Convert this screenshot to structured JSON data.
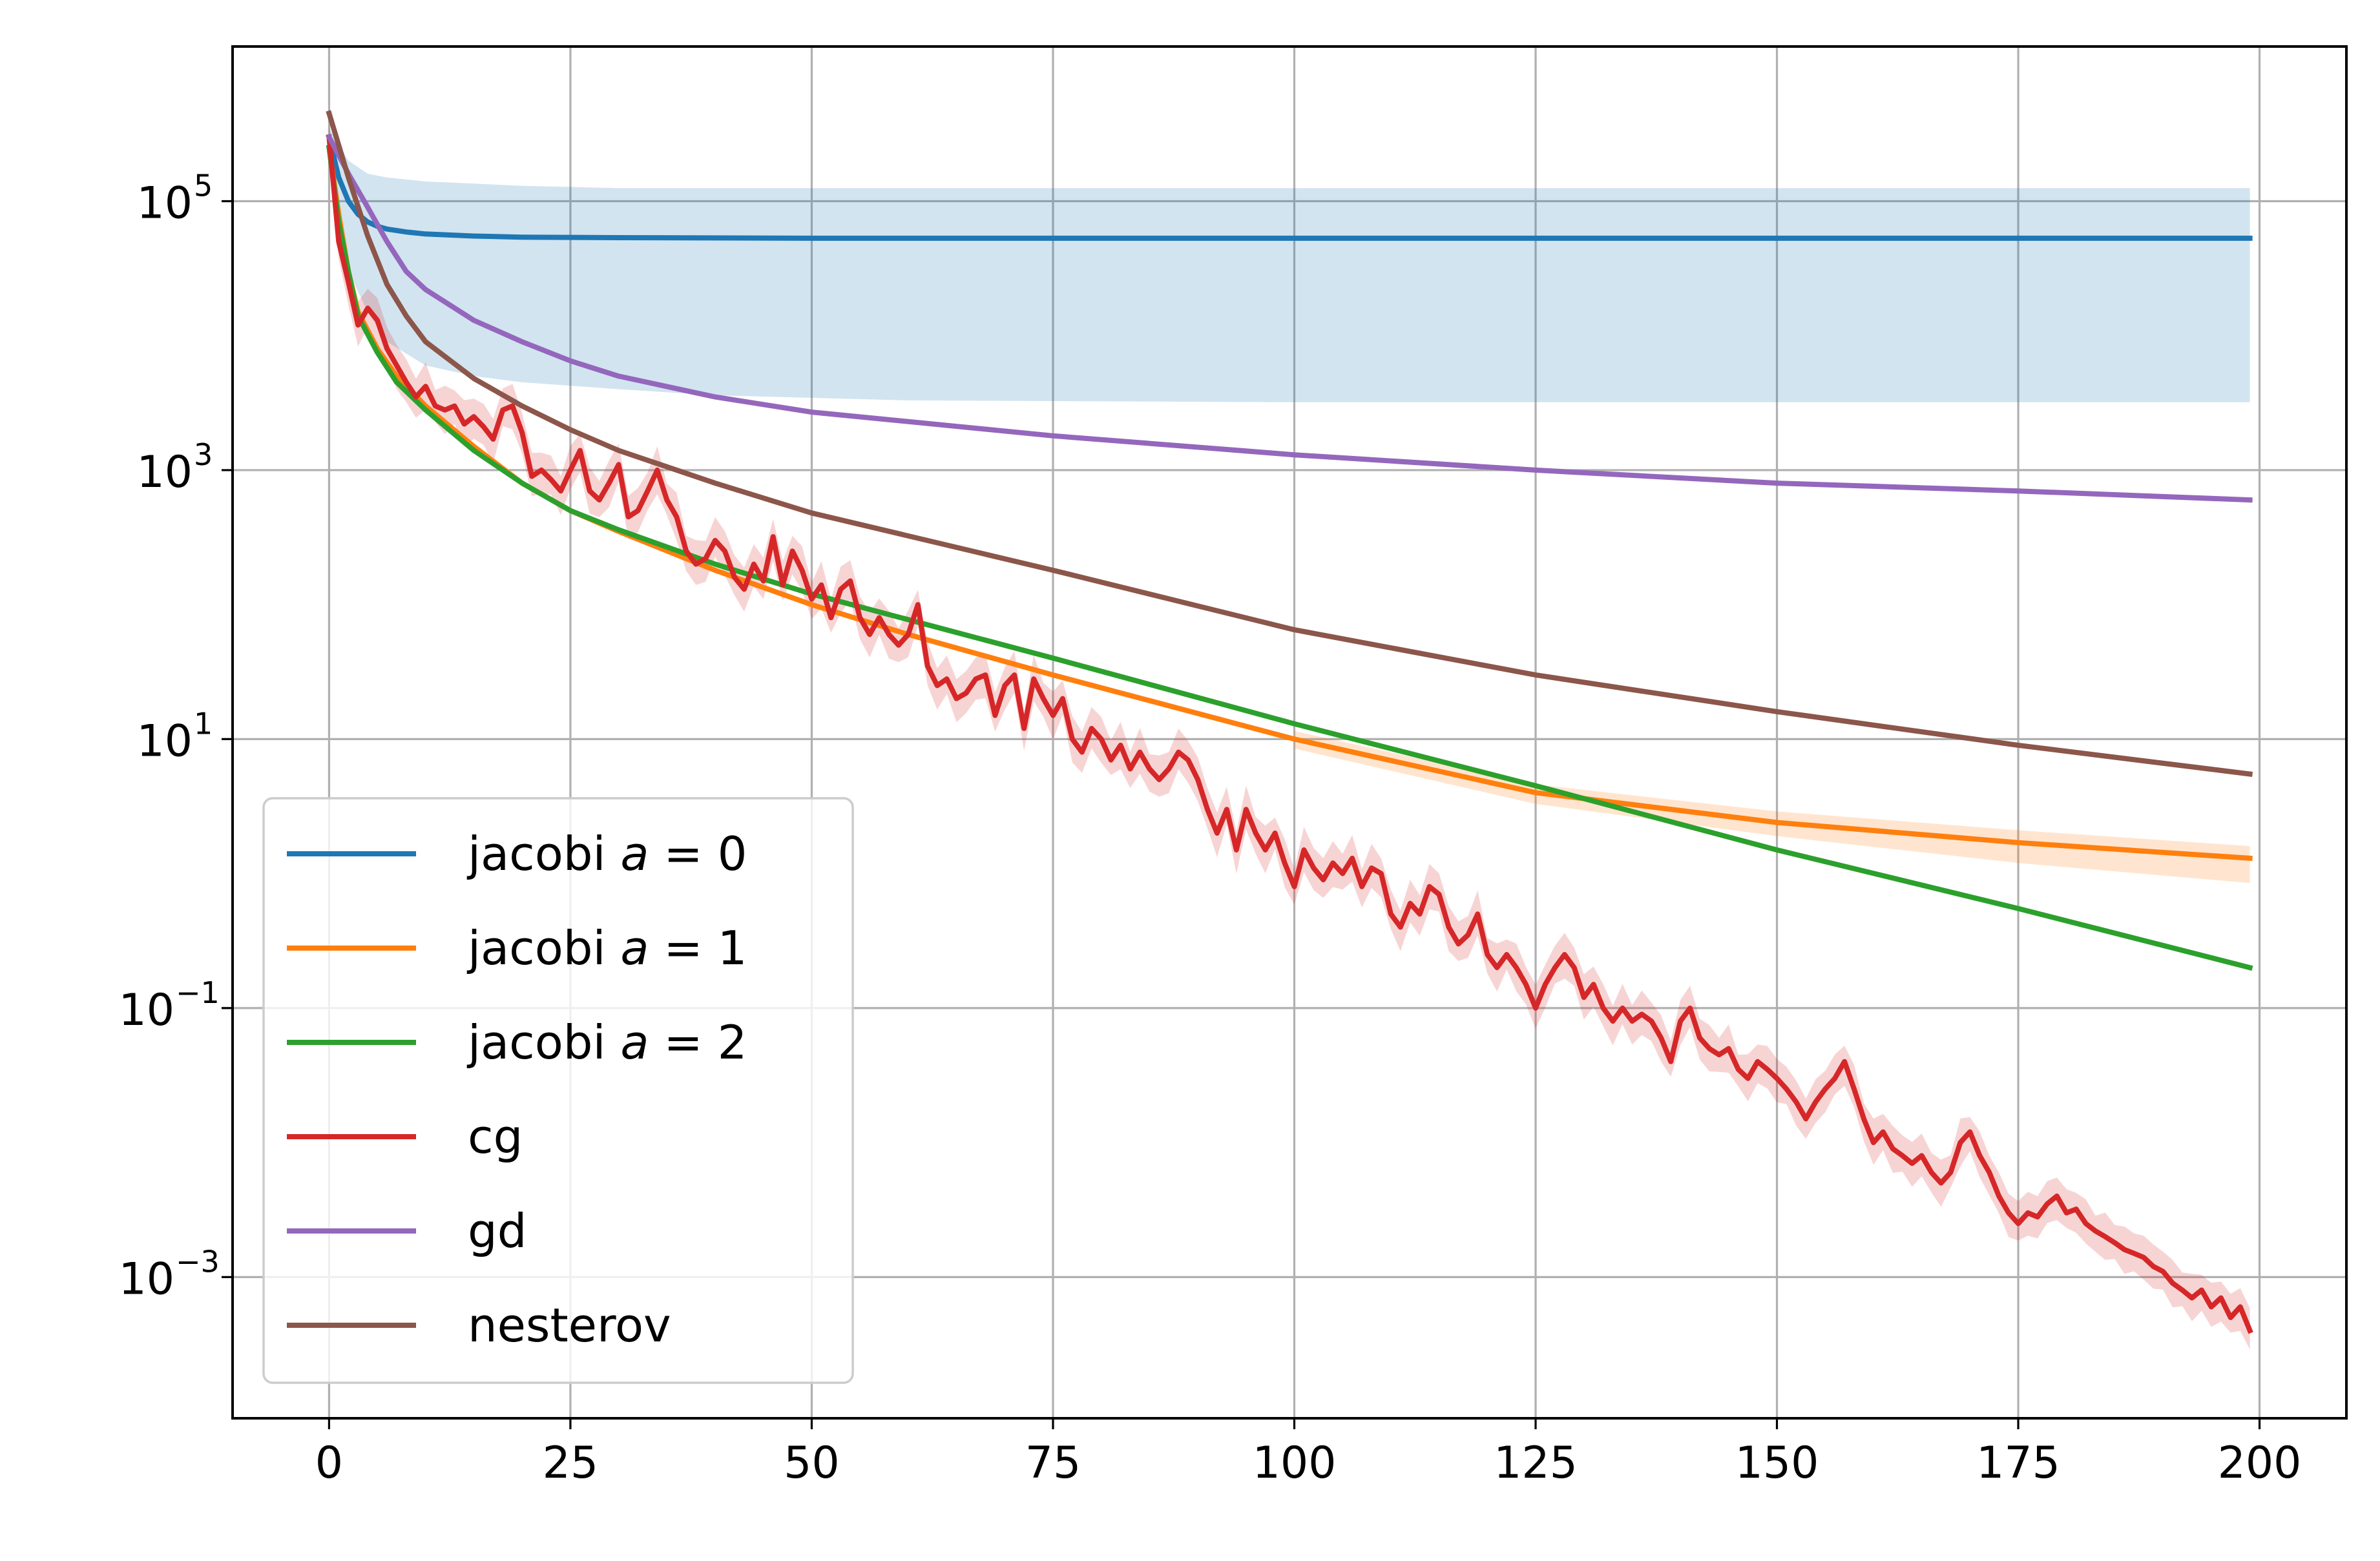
{
  "chart_data": {
    "type": "line",
    "title": "",
    "xlabel": "",
    "ylabel": "",
    "xlim": [
      -10,
      209
    ],
    "ylim_log10": [
      -4.05,
      6.15
    ],
    "yscale": "log",
    "grid": true,
    "legend_position": "lower-left",
    "x_ticks": [
      "0",
      "25",
      "50",
      "75",
      "100",
      "125",
      "150",
      "175",
      "200"
    ],
    "x_tick_values": [
      0,
      25,
      50,
      75,
      100,
      125,
      150,
      175,
      200
    ],
    "y_ticks": [
      {
        "base": "10",
        "exp": "5",
        "log10": 5
      },
      {
        "base": "10",
        "exp": "3",
        "log10": 3
      },
      {
        "base": "10",
        "exp": "1",
        "log10": 1
      },
      {
        "base": "10",
        "exp": "−1",
        "log10": -1
      },
      {
        "base": "10",
        "exp": "−3",
        "log10": -3
      }
    ],
    "series": [
      {
        "name": "jacobi a = 0",
        "label_text": "jacobi ",
        "label_math": "a",
        "label_suffix": " = 0",
        "color": "#1f77b4",
        "x": [
          0,
          1,
          2,
          3,
          4,
          5,
          6,
          8,
          10,
          15,
          20,
          30,
          50,
          100,
          150,
          199
        ],
        "y": [
          300000,
          150000,
          100000,
          80000,
          70000,
          65000,
          62000,
          59000,
          57000,
          55000,
          54000,
          53500,
          53000,
          53000,
          53000,
          53000
        ],
        "band": {
          "x": [
            0,
            2,
            4,
            6,
            10,
            15,
            20,
            30,
            40,
            60,
            100,
            150,
            199
          ],
          "lower": [
            250000,
            30000,
            15000,
            9000,
            6000,
            5000,
            4500,
            4000,
            3600,
            3300,
            3200,
            3200,
            3200
          ],
          "upper": [
            350000,
            200000,
            160000,
            150000,
            140000,
            135000,
            130000,
            125000,
            125000,
            125000,
            125000,
            125000,
            125000
          ]
        }
      },
      {
        "name": "jacobi a = 1",
        "label_text": "jacobi ",
        "label_math": "a",
        "label_suffix": " = 1",
        "color": "#ff7f0e",
        "x": [
          0,
          1,
          2,
          3,
          5,
          7,
          10,
          15,
          20,
          25,
          30,
          40,
          50,
          60,
          75,
          100,
          125,
          150,
          175,
          199
        ],
        "y": [
          250000,
          80000,
          30000,
          15000,
          8000,
          5000,
          3000,
          1500,
          800,
          500,
          350,
          180,
          100,
          60,
          30,
          10,
          4,
          2.4,
          1.7,
          1.3
        ],
        "band": {
          "x": [
            100,
            125,
            150,
            175,
            199
          ],
          "lower": [
            8.5,
            3.3,
            1.9,
            1.2,
            0.85
          ],
          "upper": [
            11.5,
            4.6,
            2.9,
            2.1,
            1.6
          ]
        }
      },
      {
        "name": "jacobi a = 2",
        "label_text": "jacobi ",
        "label_math": "a",
        "label_suffix": " = 2",
        "color": "#2ca02c",
        "x": [
          0,
          1,
          2,
          3,
          5,
          7,
          10,
          15,
          20,
          25,
          30,
          40,
          50,
          75,
          100,
          125,
          150,
          175,
          199
        ],
        "y": [
          250000,
          70000,
          30000,
          14000,
          7500,
          4500,
          2800,
          1400,
          800,
          500,
          360,
          200,
          120,
          40,
          13,
          4.5,
          1.5,
          0.55,
          0.2
        ]
      },
      {
        "name": "cg",
        "label_text": "cg",
        "label_math": "",
        "label_suffix": "",
        "color": "#d62728",
        "x": [
          0,
          1,
          2,
          3,
          4,
          5,
          6,
          7,
          8,
          9,
          10,
          11,
          12,
          13,
          14,
          15,
          16,
          17,
          18,
          19,
          20,
          21,
          22,
          23,
          24,
          25,
          26,
          27,
          28,
          29,
          30,
          31,
          32,
          33,
          34,
          35,
          36,
          37,
          38,
          39,
          40,
          41,
          42,
          43,
          44,
          45,
          46,
          47,
          48,
          49,
          50,
          51,
          52,
          53,
          54,
          55,
          56,
          57,
          58,
          59,
          60,
          61,
          62,
          63,
          64,
          65,
          66,
          67,
          68,
          69,
          70,
          71,
          72,
          73,
          74,
          75,
          76,
          77,
          78,
          79,
          80,
          81,
          82,
          83,
          84,
          85,
          86,
          87,
          88,
          89,
          90,
          91,
          92,
          93,
          94,
          95,
          96,
          97,
          98,
          99,
          100,
          101,
          102,
          103,
          104,
          105,
          106,
          107,
          108,
          109,
          110,
          111,
          112,
          113,
          114,
          115,
          116,
          117,
          118,
          119,
          120,
          121,
          122,
          123,
          124,
          125,
          126,
          127,
          128,
          129,
          130,
          131,
          132,
          133,
          134,
          135,
          136,
          137,
          138,
          139,
          140,
          141,
          142,
          143,
          144,
          145,
          146,
          147,
          148,
          149,
          150,
          151,
          152,
          153,
          154,
          155,
          156,
          157,
          158,
          159,
          160,
          161,
          162,
          163,
          164,
          165,
          166,
          167,
          168,
          169,
          170,
          171,
          172,
          173,
          174,
          175,
          176,
          177,
          178,
          179,
          180,
          181,
          182,
          183,
          184,
          185,
          186,
          187,
          188,
          189,
          190,
          191,
          192,
          193,
          194,
          195,
          196,
          197,
          198,
          199
        ],
        "y": [
          300000,
          50000,
          25000,
          12000,
          16000,
          13000,
          8000,
          6000,
          4500,
          3500,
          4200,
          3000,
          2800,
          3000,
          2200,
          2500,
          2100,
          1700,
          2800,
          3000,
          1900,
          900,
          1000,
          850,
          700,
          1000,
          1400,
          700,
          600,
          800,
          1100,
          450,
          500,
          700,
          1000,
          600,
          450,
          250,
          200,
          220,
          300,
          250,
          160,
          130,
          200,
          150,
          320,
          140,
          250,
          180,
          110,
          140,
          80,
          130,
          150,
          80,
          60,
          80,
          60,
          50,
          60,
          100,
          35,
          25,
          28,
          20,
          22,
          28,
          30,
          15,
          25,
          30,
          12,
          28,
          20,
          15,
          20,
          10,
          8,
          12,
          10,
          7,
          9,
          6,
          8,
          6,
          5,
          6,
          8,
          7,
          5,
          3,
          2,
          3,
          1.5,
          3,
          2,
          1.5,
          2,
          1.2,
          0.8,
          1.5,
          1.1,
          0.9,
          1.2,
          1.0,
          1.3,
          0.8,
          1.1,
          1.0,
          0.5,
          0.4,
          0.6,
          0.5,
          0.8,
          0.7,
          0.4,
          0.3,
          0.35,
          0.5,
          0.25,
          0.2,
          0.25,
          0.2,
          0.15,
          0.1,
          0.15,
          0.2,
          0.25,
          0.2,
          0.12,
          0.15,
          0.1,
          0.08,
          0.1,
          0.08,
          0.09,
          0.08,
          0.06,
          0.04,
          0.08,
          0.1,
          0.06,
          0.05,
          0.045,
          0.05,
          0.035,
          0.03,
          0.04,
          0.035,
          0.03,
          0.025,
          0.02,
          0.015,
          0.02,
          0.025,
          0.03,
          0.04,
          0.025,
          0.015,
          0.01,
          0.012,
          0.009,
          0.008,
          0.007,
          0.008,
          0.006,
          0.005,
          0.006,
          0.01,
          0.012,
          0.008,
          0.006,
          0.004,
          0.003,
          0.0025,
          0.003,
          0.0028,
          0.0035,
          0.004,
          0.003,
          0.0032,
          0.0025,
          0.0022,
          0.002,
          0.0018,
          0.0016,
          0.0015,
          0.0014,
          0.0012,
          0.0011,
          0.0009,
          0.0008,
          0.0007,
          0.0008,
          0.0006,
          0.0007,
          0.0005,
          0.0006,
          0.0004
        ],
        "band_spread_log10": 0.18
      },
      {
        "name": "gd",
        "label_text": "gd",
        "label_math": "",
        "label_suffix": "",
        "color": "#9467bd",
        "x": [
          0,
          2,
          4,
          6,
          8,
          10,
          15,
          20,
          25,
          30,
          40,
          50,
          75,
          100,
          125,
          150,
          175,
          199
        ],
        "y": [
          300000,
          160000,
          90000,
          50000,
          30000,
          22000,
          13000,
          9000,
          6500,
          5000,
          3500,
          2700,
          1800,
          1300,
          1000,
          800,
          700,
          600
        ]
      },
      {
        "name": "nesterov",
        "label_text": "nesterov",
        "label_math": "",
        "label_suffix": "",
        "color": "#8c564b",
        "x": [
          0,
          2,
          4,
          6,
          8,
          10,
          15,
          20,
          25,
          30,
          40,
          50,
          75,
          100,
          125,
          150,
          175,
          199
        ],
        "y": [
          450000,
          150000,
          55000,
          24000,
          14000,
          9000,
          4800,
          3000,
          2000,
          1400,
          800,
          480,
          180,
          65,
          30,
          16,
          9,
          5.5
        ]
      }
    ]
  }
}
